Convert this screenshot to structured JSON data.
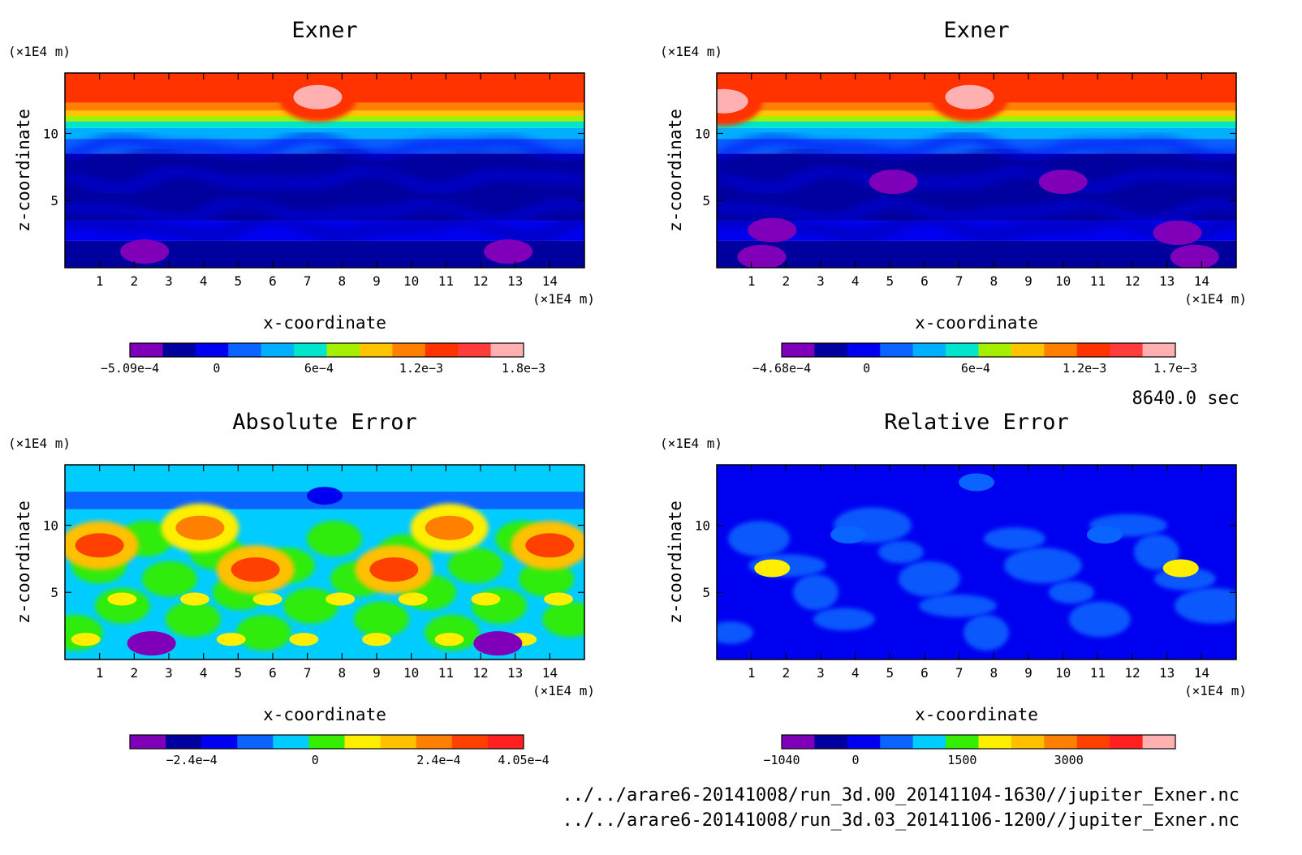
{
  "time_label": "8640.0 sec",
  "file_paths": [
    "../../arare6-20141008/run_3d.00_20141104-1630//jupiter_Exner.nc",
    "../../arare6-20141008/run_3d.03_20141106-1200//jupiter_Exner.nc"
  ],
  "chart_data": [
    {
      "type": "heatmap",
      "title": "Exner",
      "xlabel": "x-coordinate",
      "ylabel": "z-coordinate",
      "x_unit": "(×1E4 m)",
      "y_unit": "(×1E4 m)",
      "xlim": [
        0,
        15
      ],
      "ylim": [
        0,
        14.5
      ],
      "xticks": [
        1,
        2,
        3,
        4,
        5,
        6,
        7,
        8,
        9,
        10,
        11,
        12,
        13,
        14
      ],
      "yticks": [
        5,
        10
      ],
      "colorbar": {
        "levels": 11,
        "colors": [
          "#7f00b8",
          "#00009e",
          "#0000f0",
          "#0a64ff",
          "#00b0ff",
          "#00e5cc",
          "#a5f000",
          "#ffc400",
          "#ff7f00",
          "#ff3300",
          "#ff3c3c",
          "#ffb0b0"
        ],
        "tick_labels": [
          "−5.09e−4",
          "0",
          "6e−4",
          "1.2e−3",
          "1.8e−3"
        ],
        "tick_values": [
          -0.000509,
          0,
          0.0006,
          0.0012,
          0.0018
        ],
        "range": [
          -0.000509,
          0.0018
        ]
      },
      "field": {
        "description_levels": "Horizontal bands: low levels (purple/dark blue) near z<3, blue 3-9, cyan/green transition 9-11, orange/red above 11, pink streaks near top",
        "z_band_levels": [
          [
            0,
            2,
            1
          ],
          [
            2,
            3.5,
            2
          ],
          [
            3.5,
            8.5,
            1
          ],
          [
            8.5,
            9.6,
            3
          ],
          [
            9.6,
            10.4,
            4
          ],
          [
            10.4,
            10.9,
            5
          ],
          [
            10.9,
            11.3,
            6
          ],
          [
            11.3,
            11.7,
            7
          ],
          [
            11.7,
            12.3,
            8
          ],
          [
            12.3,
            14.5,
            9
          ]
        ],
        "features": [
          {
            "x": 2.3,
            "z": 1.2,
            "level": 0
          },
          {
            "x": 12.8,
            "z": 1.2,
            "level": 0
          },
          {
            "x": 7.3,
            "z": 12.7,
            "level": 11
          }
        ]
      }
    },
    {
      "type": "heatmap",
      "title": "Exner",
      "xlabel": "x-coordinate",
      "ylabel": "z-coordinate",
      "x_unit": "(×1E4 m)",
      "y_unit": "(×1E4 m)",
      "xlim": [
        0,
        15
      ],
      "ylim": [
        0,
        14.5
      ],
      "xticks": [
        1,
        2,
        3,
        4,
        5,
        6,
        7,
        8,
        9,
        10,
        11,
        12,
        13,
        14
      ],
      "yticks": [
        5,
        10
      ],
      "colorbar": {
        "levels": 11,
        "colors": [
          "#7f00b8",
          "#00009e",
          "#0000f0",
          "#0a64ff",
          "#00b0ff",
          "#00e5cc",
          "#a5f000",
          "#ffc400",
          "#ff7f00",
          "#ff3300",
          "#ff3c3c",
          "#ffb0b0"
        ],
        "tick_labels": [
          "−4.68e−4",
          "0",
          "6e−4",
          "1.2e−3",
          "1.7e−3"
        ],
        "tick_values": [
          -0.000468,
          0,
          0.0006,
          0.0012,
          0.0017
        ],
        "range": [
          -0.000468,
          0.0017
        ]
      },
      "field": {
        "z_band_levels": [
          [
            0,
            2,
            1
          ],
          [
            2,
            3.5,
            2
          ],
          [
            3.5,
            8.5,
            1
          ],
          [
            8.5,
            9.6,
            3
          ],
          [
            9.6,
            10.4,
            4
          ],
          [
            10.4,
            10.9,
            5
          ],
          [
            10.9,
            11.3,
            6
          ],
          [
            11.3,
            11.7,
            7
          ],
          [
            11.7,
            12.3,
            8
          ],
          [
            12.3,
            14.5,
            9
          ]
        ],
        "features": [
          {
            "x": 1.3,
            "z": 0.8,
            "level": 0
          },
          {
            "x": 1.6,
            "z": 2.8,
            "level": 0
          },
          {
            "x": 5.1,
            "z": 6.4,
            "level": 0
          },
          {
            "x": 10.0,
            "z": 6.4,
            "level": 0
          },
          {
            "x": 13.3,
            "z": 2.6,
            "level": 0
          },
          {
            "x": 13.8,
            "z": 0.8,
            "level": 0
          },
          {
            "x": 0.2,
            "z": 12.4,
            "level": 11
          },
          {
            "x": 7.3,
            "z": 12.7,
            "level": 11
          }
        ]
      }
    },
    {
      "type": "heatmap",
      "title": "Absolute Error",
      "xlabel": "x-coordinate",
      "ylabel": "z-coordinate",
      "x_unit": "(×1E4 m)",
      "y_unit": "(×1E4 m)",
      "xlim": [
        0,
        15
      ],
      "ylim": [
        0,
        14.5
      ],
      "xticks": [
        1,
        2,
        3,
        4,
        5,
        6,
        7,
        8,
        9,
        10,
        11,
        12,
        13,
        14
      ],
      "yticks": [
        5,
        10
      ],
      "colorbar": {
        "levels": 11,
        "colors": [
          "#7f00b8",
          "#00009e",
          "#0000f0",
          "#0a64ff",
          "#00ccff",
          "#33ee00",
          "#ffee00",
          "#ffc000",
          "#ff8000",
          "#ff4000",
          "#ff2020"
        ],
        "tick_labels": [
          "−2.4e−4",
          "0",
          "2.4e−4",
          "4.05e−4"
        ],
        "tick_values": [
          -0.00024,
          0,
          0.00024,
          0.000405
        ],
        "range": [
          -0.00036,
          0.000405
        ]
      },
      "field": {
        "features": [
          {
            "x": 1.0,
            "z": 8.5,
            "level": 9
          },
          {
            "x": 14.0,
            "z": 8.5,
            "level": 9
          },
          {
            "x": 3.9,
            "z": 9.8,
            "level": 8
          },
          {
            "x": 11.1,
            "z": 9.8,
            "level": 8
          },
          {
            "x": 5.5,
            "z": 6.7,
            "level": 9
          },
          {
            "x": 9.5,
            "z": 6.7,
            "level": 9
          },
          {
            "x": 2.5,
            "z": 1.2,
            "level": 0
          },
          {
            "x": 12.5,
            "z": 1.2,
            "level": 0
          },
          {
            "x": 7.5,
            "z": 12.2,
            "level": 2
          }
        ]
      }
    },
    {
      "type": "heatmap",
      "title": "Relative Error",
      "xlabel": "x-coordinate",
      "ylabel": "z-coordinate",
      "x_unit": "(×1E4 m)",
      "y_unit": "(×1E4 m)",
      "xlim": [
        0,
        15
      ],
      "ylim": [
        0,
        14.5
      ],
      "xticks": [
        1,
        2,
        3,
        4,
        5,
        6,
        7,
        8,
        9,
        10,
        11,
        12,
        13,
        14
      ],
      "yticks": [
        5,
        10
      ],
      "colorbar": {
        "levels": 11,
        "colors": [
          "#7f00b8",
          "#00009e",
          "#0000f0",
          "#0a64ff",
          "#00ccff",
          "#33ee00",
          "#ffee00",
          "#ffc000",
          "#ff8000",
          "#ff4000",
          "#ff2020",
          "#ffb0b0"
        ],
        "tick_labels": [
          "−1040",
          "0",
          "1500",
          "3000"
        ],
        "tick_values": [
          -1040,
          0,
          1500,
          3000
        ],
        "range": [
          -1040,
          4500
        ]
      },
      "field": {
        "background_level": 2,
        "features": [
          {
            "x": 7.5,
            "z": 13.2,
            "level": 3
          },
          {
            "x": 3.8,
            "z": 9.3,
            "level": 3
          },
          {
            "x": 11.2,
            "z": 9.3,
            "level": 3
          },
          {
            "x": 1.6,
            "z": 6.8,
            "level": 6
          },
          {
            "x": 13.4,
            "z": 6.8,
            "level": 6
          }
        ]
      }
    }
  ]
}
